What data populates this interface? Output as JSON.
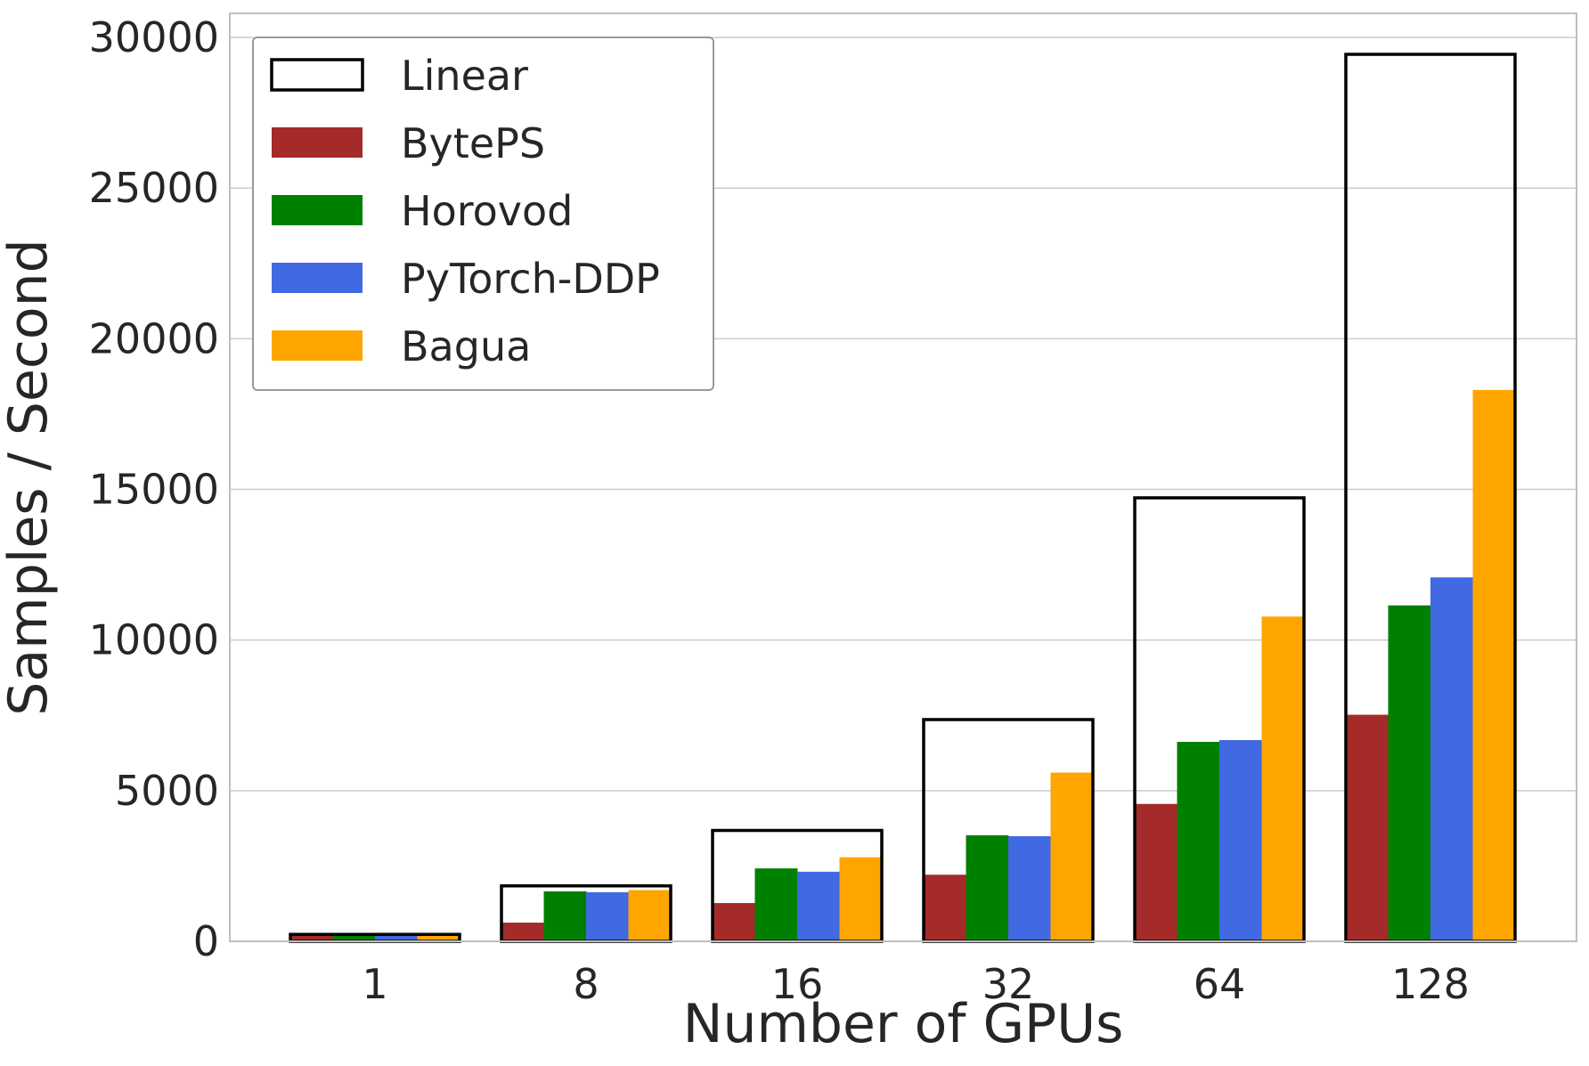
{
  "chart_data": {
    "type": "bar",
    "title": "",
    "xlabel": "Number of GPUs",
    "ylabel": "Samples / Second",
    "categories": [
      "1",
      "8",
      "16",
      "32",
      "64",
      "128"
    ],
    "ylim": [
      0,
      30800
    ],
    "yticks": [
      0,
      5000,
      10000,
      15000,
      20000,
      25000,
      30000
    ],
    "grid": true,
    "legend_position": "top-left",
    "series": [
      {
        "name": "Linear",
        "style": "outline",
        "color": "#000000",
        "values": [
          230,
          1840,
          3680,
          7360,
          14720,
          29440
        ]
      },
      {
        "name": "BytePS",
        "color": "#a52a2a",
        "values": [
          230,
          620,
          1270,
          2210,
          4560,
          7520
        ]
      },
      {
        "name": "Horovod",
        "color": "#008000",
        "values": [
          230,
          1660,
          2420,
          3520,
          6620,
          11150
        ]
      },
      {
        "name": "PyTorch-DDP",
        "color": "#4169e1",
        "values": [
          230,
          1630,
          2310,
          3490,
          6680,
          12080
        ]
      },
      {
        "name": "Bagua",
        "color": "#ffa500",
        "values": [
          230,
          1700,
          2790,
          5600,
          10780,
          18300
        ]
      }
    ]
  }
}
